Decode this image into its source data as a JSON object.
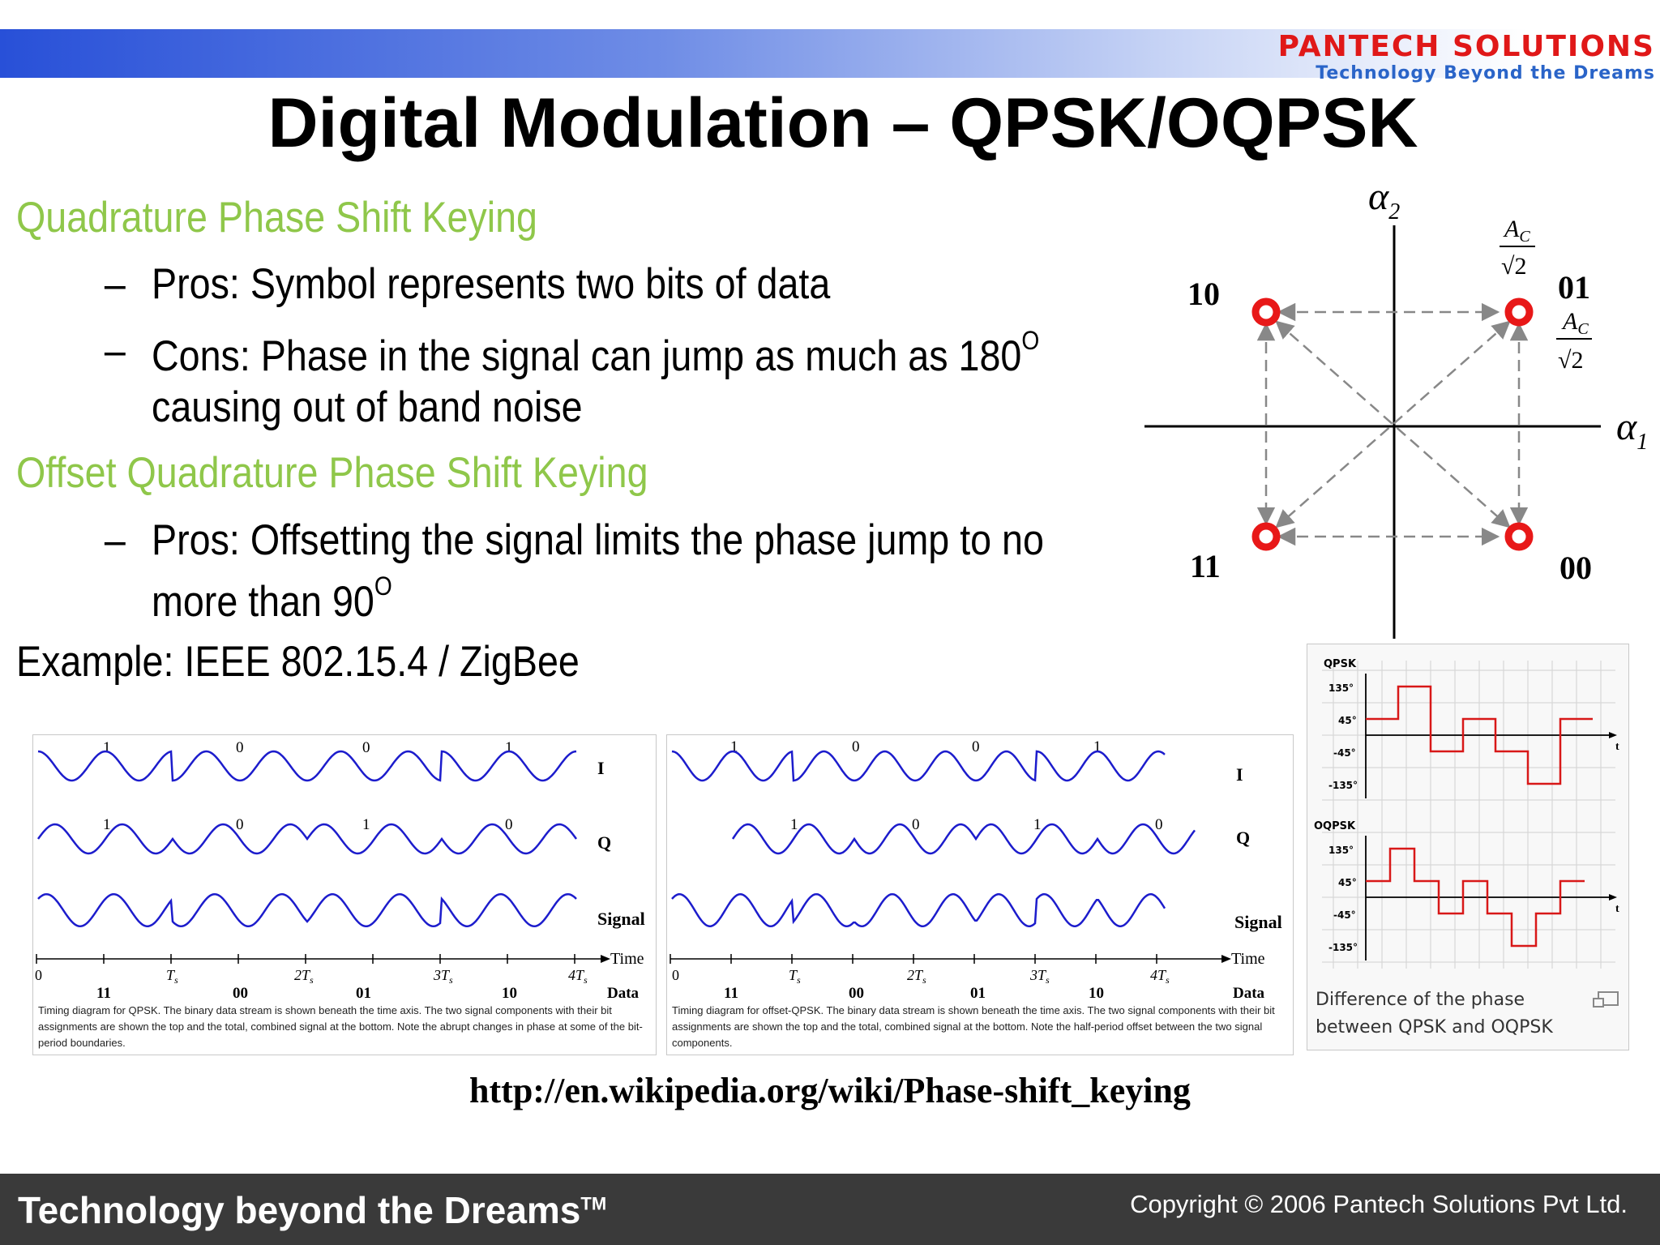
{
  "header": {
    "company_name": "PANTECH SOLUTIONS",
    "company_tagline": "Technology Beyond the Dreams"
  },
  "title": "Digital Modulation – QPSK/OQPSK",
  "content": {
    "heading_qpsk": "Quadrature Phase Shift Keying",
    "qpsk_pros": "Pros:  Symbol represents two bits of data",
    "qpsk_cons_line1": "Cons: Phase in the signal can jump as much as 180",
    "qpsk_cons_sup": "O",
    "qpsk_cons_line2": "causing out of band noise",
    "heading_oqpsk": "Offset Quadrature Phase Shift Keying",
    "oqpsk_pros_line1": "Pros: Offsetting the signal limits the phase jump to no",
    "oqpsk_pros_line2": "more than 90",
    "oqpsk_pros_sup": "O",
    "example": "Example: IEEE 802.15.4 / ZigBee",
    "dash": "–"
  },
  "constellation": {
    "axis_x": "α",
    "axis_x_sub": "1",
    "axis_y": "α",
    "axis_y_sub": "2",
    "amp_num": "A",
    "amp_num_sub": "C",
    "amp_den": "√2",
    "labels": [
      "10",
      "01",
      "11",
      "00"
    ],
    "point_color": "#e81818"
  },
  "qpsk_timing": {
    "i_bits": [
      "1",
      "0",
      "0",
      "1"
    ],
    "q_bits": [
      "1",
      "0",
      "1",
      "0"
    ],
    "row_labels": [
      "I",
      "Q",
      "Signal"
    ],
    "time_label": "Time",
    "data_label": "Data",
    "ticks": [
      "0",
      "T",
      "2T",
      "3T",
      "4T"
    ],
    "tick_sub": "s",
    "symbols": [
      "11",
      "00",
      "01",
      "10"
    ],
    "caption": "Timing diagram for QPSK. The binary data stream is shown beneath the time axis. The two signal components with their bit assignments are shown the top and the total, combined signal at the bottom. Note the abrupt changes in phase at some of the bit-period boundaries."
  },
  "oqpsk_timing": {
    "i_bits": [
      "1",
      "0",
      "0",
      "1"
    ],
    "q_bits": [
      "1",
      "0",
      "1",
      "0"
    ],
    "row_labels": [
      "I",
      "Q",
      "Signal"
    ],
    "time_label": "Time",
    "data_label": "Data",
    "ticks": [
      "0",
      "T",
      "2T",
      "3T",
      "4T"
    ],
    "tick_sub": "s",
    "symbols": [
      "11",
      "00",
      "01",
      "10"
    ],
    "caption": "Timing diagram for offset-QPSK. The binary data stream is shown beneath the time axis. The two signal components with their bit assignments are shown the top and the total, combined signal at the bottom. Note the half-period offset between the two signal components."
  },
  "phase_diagram": {
    "qpsk_label": "QPSK",
    "oqpsk_label": "OQPSK",
    "levels": [
      "135°",
      "45°",
      "-45°",
      "-135°"
    ],
    "t_label": "t",
    "caption_line1": "Difference of the phase",
    "caption_line2": "between QPSK and OQPSK",
    "qpsk_phases": [
      45,
      135,
      -45,
      45,
      -45,
      -135,
      45
    ],
    "oqpsk_phases": [
      45,
      135,
      45,
      -45,
      45,
      -45,
      -135,
      -45,
      45
    ]
  },
  "url": "http://en.wikipedia.org/wiki/Phase-shift_keying",
  "footer": {
    "slogan": "Technology beyond the Dreams",
    "trademark": "TM",
    "copyright": "Copyright © 2006 Pantech Solutions Pvt Ltd."
  }
}
